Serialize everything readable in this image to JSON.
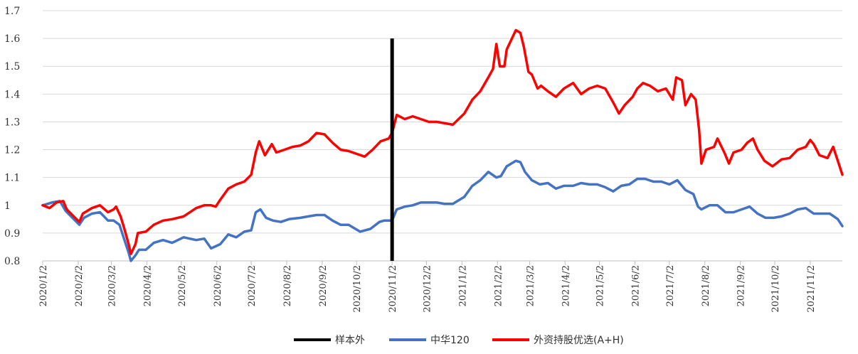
{
  "chart_data": {
    "type": "line",
    "title": "",
    "xlabel": "",
    "ylabel": "",
    "ylim": [
      0.8,
      1.7
    ],
    "yticks": [
      "0.8",
      "0.9",
      "1",
      "1.1",
      "1.2",
      "1.3",
      "1.4",
      "1.5",
      "1.6",
      "1.7"
    ],
    "xlim": [
      "2020/1/2",
      "2021/11/30"
    ],
    "xticks": [
      "2020/1/2",
      "2020/2/2",
      "2020/3/2",
      "2020/4/2",
      "2020/5/2",
      "2020/6/2",
      "2020/7/2",
      "2020/8/2",
      "2020/9/2",
      "2020/10/2",
      "2020/11/2",
      "2020/12/2",
      "2021/1/2",
      "2021/2/2",
      "2021/3/2",
      "2021/4/2",
      "2021/5/2",
      "2021/6/2",
      "2021/7/2",
      "2021/8/2",
      "2021/9/2",
      "2021/10/2",
      "2021/11/2"
    ],
    "grid": true,
    "legend_position": "bottom",
    "sample_divider": {
      "name": "样本外",
      "date": "2020/11/2",
      "y_range": [
        0.8,
        1.6
      ],
      "color": "#000000"
    },
    "series": [
      {
        "name": "中华120",
        "color": "#4472c4",
        "points": [
          [
            "2020/1/2",
            1.0
          ],
          [
            "2020/1/10",
            1.01
          ],
          [
            "2020/1/17",
            1.015
          ],
          [
            "2020/1/22",
            0.98
          ],
          [
            "2020/2/3",
            0.93
          ],
          [
            "2020/2/7",
            0.955
          ],
          [
            "2020/2/14",
            0.97
          ],
          [
            "2020/2/21",
            0.975
          ],
          [
            "2020/2/28",
            0.945
          ],
          [
            "2020/3/4",
            0.945
          ],
          [
            "2020/3/9",
            0.93
          ],
          [
            "2020/3/13",
            0.88
          ],
          [
            "2020/3/17",
            0.83
          ],
          [
            "2020/3/19",
            0.8
          ],
          [
            "2020/3/23",
            0.82
          ],
          [
            "2020/3/26",
            0.84
          ],
          [
            "2020/4/1",
            0.84
          ],
          [
            "2020/4/8",
            0.865
          ],
          [
            "2020/4/16",
            0.875
          ],
          [
            "2020/4/24",
            0.865
          ],
          [
            "2020/5/4",
            0.885
          ],
          [
            "2020/5/15",
            0.875
          ],
          [
            "2020/5/22",
            0.88
          ],
          [
            "2020/5/28",
            0.845
          ],
          [
            "2020/6/5",
            0.86
          ],
          [
            "2020/6/12",
            0.895
          ],
          [
            "2020/6/19",
            0.885
          ],
          [
            "2020/6/26",
            0.905
          ],
          [
            "2020/7/2",
            0.91
          ],
          [
            "2020/7/6",
            0.975
          ],
          [
            "2020/7/10",
            0.985
          ],
          [
            "2020/7/15",
            0.955
          ],
          [
            "2020/7/21",
            0.945
          ],
          [
            "2020/7/28",
            0.94
          ],
          [
            "2020/8/4",
            0.95
          ],
          [
            "2020/8/14",
            0.955
          ],
          [
            "2020/8/21",
            0.96
          ],
          [
            "2020/8/28",
            0.965
          ],
          [
            "2020/9/4",
            0.965
          ],
          [
            "2020/9/11",
            0.945
          ],
          [
            "2020/9/18",
            0.93
          ],
          [
            "2020/9/25",
            0.93
          ],
          [
            "2020/10/5",
            0.905
          ],
          [
            "2020/10/14",
            0.915
          ],
          [
            "2020/10/22",
            0.94
          ],
          [
            "2020/10/26",
            0.945
          ],
          [
            "2020/11/2",
            0.945
          ],
          [
            "2020/11/6",
            0.985
          ],
          [
            "2020/11/13",
            0.995
          ],
          [
            "2020/11/20",
            1.0
          ],
          [
            "2020/11/27",
            1.01
          ],
          [
            "2020/12/4",
            1.01
          ],
          [
            "2020/12/11",
            1.01
          ],
          [
            "2020/12/18",
            1.005
          ],
          [
            "2020/12/25",
            1.005
          ],
          [
            "2021/1/4",
            1.03
          ],
          [
            "2021/1/11",
            1.07
          ],
          [
            "2021/1/18",
            1.09
          ],
          [
            "2021/1/25",
            1.12
          ],
          [
            "2021/2/1",
            1.1
          ],
          [
            "2021/2/5",
            1.105
          ],
          [
            "2021/2/10",
            1.14
          ],
          [
            "2021/2/18",
            1.16
          ],
          [
            "2021/2/22",
            1.155
          ],
          [
            "2021/2/26",
            1.12
          ],
          [
            "2021/3/4",
            1.09
          ],
          [
            "2021/3/11",
            1.075
          ],
          [
            "2021/3/18",
            1.08
          ],
          [
            "2021/3/25",
            1.06
          ],
          [
            "2021/4/1",
            1.07
          ],
          [
            "2021/4/9",
            1.07
          ],
          [
            "2021/4/16",
            1.08
          ],
          [
            "2021/4/23",
            1.075
          ],
          [
            "2021/4/30",
            1.075
          ],
          [
            "2021/5/7",
            1.065
          ],
          [
            "2021/5/14",
            1.05
          ],
          [
            "2021/5/21",
            1.07
          ],
          [
            "2021/5/28",
            1.075
          ],
          [
            "2021/6/4",
            1.095
          ],
          [
            "2021/6/11",
            1.095
          ],
          [
            "2021/6/18",
            1.085
          ],
          [
            "2021/6/25",
            1.085
          ],
          [
            "2021/7/2",
            1.075
          ],
          [
            "2021/7/9",
            1.09
          ],
          [
            "2021/7/16",
            1.055
          ],
          [
            "2021/7/23",
            1.04
          ],
          [
            "2021/7/27",
            0.995
          ],
          [
            "2021/7/30",
            0.985
          ],
          [
            "2021/8/6",
            1.0
          ],
          [
            "2021/8/13",
            1.0
          ],
          [
            "2021/8/20",
            0.975
          ],
          [
            "2021/8/27",
            0.975
          ],
          [
            "2021/9/3",
            0.985
          ],
          [
            "2021/9/10",
            0.995
          ],
          [
            "2021/9/17",
            0.97
          ],
          [
            "2021/9/24",
            0.955
          ],
          [
            "2021/10/1",
            0.955
          ],
          [
            "2021/10/8",
            0.96
          ],
          [
            "2021/10/15",
            0.97
          ],
          [
            "2021/10/22",
            0.985
          ],
          [
            "2021/10/29",
            0.99
          ],
          [
            "2021/11/5",
            0.97
          ],
          [
            "2021/11/12",
            0.97
          ],
          [
            "2021/11/19",
            0.97
          ],
          [
            "2021/11/26",
            0.95
          ],
          [
            "2021/11/30",
            0.925
          ]
        ]
      },
      {
        "name": "外资持股优选(A+H)",
        "color": "#ff0000",
        "points": [
          [
            "2020/1/2",
            1.0
          ],
          [
            "2020/1/8",
            0.99
          ],
          [
            "2020/1/14",
            1.01
          ],
          [
            "2020/1/20",
            1.015
          ],
          [
            "2020/1/23",
            0.985
          ],
          [
            "2020/2/3",
            0.94
          ],
          [
            "2020/2/6",
            0.97
          ],
          [
            "2020/2/14",
            0.99
          ],
          [
            "2020/2/21",
            1.0
          ],
          [
            "2020/2/28",
            0.975
          ],
          [
            "2020/3/4",
            0.985
          ],
          [
            "2020/3/6",
            0.995
          ],
          [
            "2020/3/10",
            0.96
          ],
          [
            "2020/3/13",
            0.92
          ],
          [
            "2020/3/17",
            0.86
          ],
          [
            "2020/3/19",
            0.825
          ],
          [
            "2020/3/23",
            0.86
          ],
          [
            "2020/3/25",
            0.9
          ],
          [
            "2020/4/1",
            0.905
          ],
          [
            "2020/4/8",
            0.93
          ],
          [
            "2020/4/16",
            0.945
          ],
          [
            "2020/4/24",
            0.95
          ],
          [
            "2020/5/4",
            0.96
          ],
          [
            "2020/5/15",
            0.99
          ],
          [
            "2020/5/22",
            1.0
          ],
          [
            "2020/5/28",
            1.0
          ],
          [
            "2020/6/1",
            0.995
          ],
          [
            "2020/6/5",
            1.02
          ],
          [
            "2020/6/12",
            1.06
          ],
          [
            "2020/6/19",
            1.075
          ],
          [
            "2020/6/26",
            1.085
          ],
          [
            "2020/7/2",
            1.11
          ],
          [
            "2020/7/6",
            1.19
          ],
          [
            "2020/7/9",
            1.23
          ],
          [
            "2020/7/14",
            1.18
          ],
          [
            "2020/7/20",
            1.22
          ],
          [
            "2020/7/24",
            1.19
          ],
          [
            "2020/7/31",
            1.2
          ],
          [
            "2020/8/7",
            1.21
          ],
          [
            "2020/8/14",
            1.215
          ],
          [
            "2020/8/21",
            1.23
          ],
          [
            "2020/8/28",
            1.26
          ],
          [
            "2020/9/4",
            1.255
          ],
          [
            "2020/9/11",
            1.225
          ],
          [
            "2020/9/18",
            1.2
          ],
          [
            "2020/9/25",
            1.195
          ],
          [
            "2020/10/9",
            1.175
          ],
          [
            "2020/10/16",
            1.2
          ],
          [
            "2020/10/23",
            1.23
          ],
          [
            "2020/10/30",
            1.24
          ],
          [
            "2020/11/2",
            1.26
          ],
          [
            "2020/11/6",
            1.325
          ],
          [
            "2020/11/13",
            1.31
          ],
          [
            "2020/11/20",
            1.32
          ],
          [
            "2020/11/27",
            1.31
          ],
          [
            "2020/12/4",
            1.3
          ],
          [
            "2020/12/11",
            1.3
          ],
          [
            "2020/12/18",
            1.295
          ],
          [
            "2020/12/25",
            1.29
          ],
          [
            "2021/1/4",
            1.33
          ],
          [
            "2021/1/11",
            1.38
          ],
          [
            "2021/1/18",
            1.41
          ],
          [
            "2021/1/25",
            1.46
          ],
          [
            "2021/1/29",
            1.49
          ],
          [
            "2021/2/1",
            1.58
          ],
          [
            "2021/2/4",
            1.5
          ],
          [
            "2021/2/8",
            1.5
          ],
          [
            "2021/2/10",
            1.56
          ],
          [
            "2021/2/18",
            1.63
          ],
          [
            "2021/2/22",
            1.62
          ],
          [
            "2021/2/25",
            1.57
          ],
          [
            "2021/3/1",
            1.48
          ],
          [
            "2021/3/4",
            1.47
          ],
          [
            "2021/3/9",
            1.42
          ],
          [
            "2021/3/12",
            1.43
          ],
          [
            "2021/3/18",
            1.41
          ],
          [
            "2021/3/25",
            1.39
          ],
          [
            "2021/4/1",
            1.42
          ],
          [
            "2021/4/9",
            1.44
          ],
          [
            "2021/4/16",
            1.4
          ],
          [
            "2021/4/23",
            1.42
          ],
          [
            "2021/4/30",
            1.43
          ],
          [
            "2021/5/7",
            1.42
          ],
          [
            "2021/5/14",
            1.37
          ],
          [
            "2021/5/19",
            1.33
          ],
          [
            "2021/5/24",
            1.36
          ],
          [
            "2021/5/31",
            1.39
          ],
          [
            "2021/6/4",
            1.42
          ],
          [
            "2021/6/9",
            1.44
          ],
          [
            "2021/6/15",
            1.43
          ],
          [
            "2021/6/22",
            1.41
          ],
          [
            "2021/6/29",
            1.42
          ],
          [
            "2021/7/5",
            1.38
          ],
          [
            "2021/7/8",
            1.46
          ],
          [
            "2021/7/13",
            1.45
          ],
          [
            "2021/7/16",
            1.36
          ],
          [
            "2021/7/21",
            1.4
          ],
          [
            "2021/7/25",
            1.38
          ],
          [
            "2021/7/28",
            1.27
          ],
          [
            "2021/7/30",
            1.15
          ],
          [
            "2021/8/3",
            1.2
          ],
          [
            "2021/8/10",
            1.21
          ],
          [
            "2021/8/13",
            1.24
          ],
          [
            "2021/8/19",
            1.19
          ],
          [
            "2021/8/23",
            1.15
          ],
          [
            "2021/8/27",
            1.19
          ],
          [
            "2021/9/3",
            1.2
          ],
          [
            "2021/9/8",
            1.225
          ],
          [
            "2021/9/13",
            1.24
          ],
          [
            "2021/9/17",
            1.2
          ],
          [
            "2021/9/23",
            1.16
          ],
          [
            "2021/9/30",
            1.14
          ],
          [
            "2021/10/8",
            1.165
          ],
          [
            "2021/10/15",
            1.17
          ],
          [
            "2021/10/22",
            1.2
          ],
          [
            "2021/10/29",
            1.21
          ],
          [
            "2021/11/2",
            1.235
          ],
          [
            "2021/11/5",
            1.22
          ],
          [
            "2021/11/10",
            1.18
          ],
          [
            "2021/11/17",
            1.17
          ],
          [
            "2021/11/22",
            1.21
          ],
          [
            "2021/11/26",
            1.16
          ],
          [
            "2021/11/30",
            1.11
          ]
        ]
      }
    ]
  }
}
